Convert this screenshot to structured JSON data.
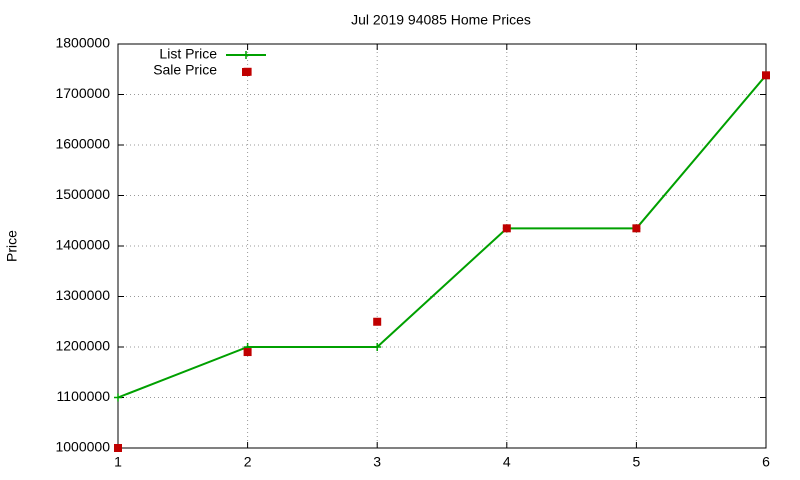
{
  "chart_data": {
    "type": "line",
    "title": "Jul 2019 94085 Home Prices",
    "ylabel": "Price",
    "series": [
      {
        "name": "List Price",
        "color": "#00a000",
        "mode": "lines+markers",
        "x": [
          1,
          2,
          3,
          4,
          5,
          6
        ],
        "values": [
          1100000,
          1200000,
          1200000,
          1435000,
          1435000,
          1738000
        ]
      },
      {
        "name": "Sale Price",
        "color": "#c00000",
        "mode": "markers",
        "x": [
          1,
          2,
          2,
          3,
          4,
          5,
          6
        ],
        "values": [
          1000000,
          1745000,
          1190000,
          1250000,
          1435000,
          1435000,
          1738000
        ]
      }
    ],
    "xlim": [
      1,
      6
    ],
    "xticks": [
      1,
      2,
      3,
      4,
      5,
      6
    ],
    "ylim": [
      1000000,
      1800000
    ],
    "yticks": [
      1000000,
      1100000,
      1200000,
      1300000,
      1400000,
      1500000,
      1600000,
      1700000,
      1800000
    ],
    "grid": true,
    "legend": "top-left"
  }
}
